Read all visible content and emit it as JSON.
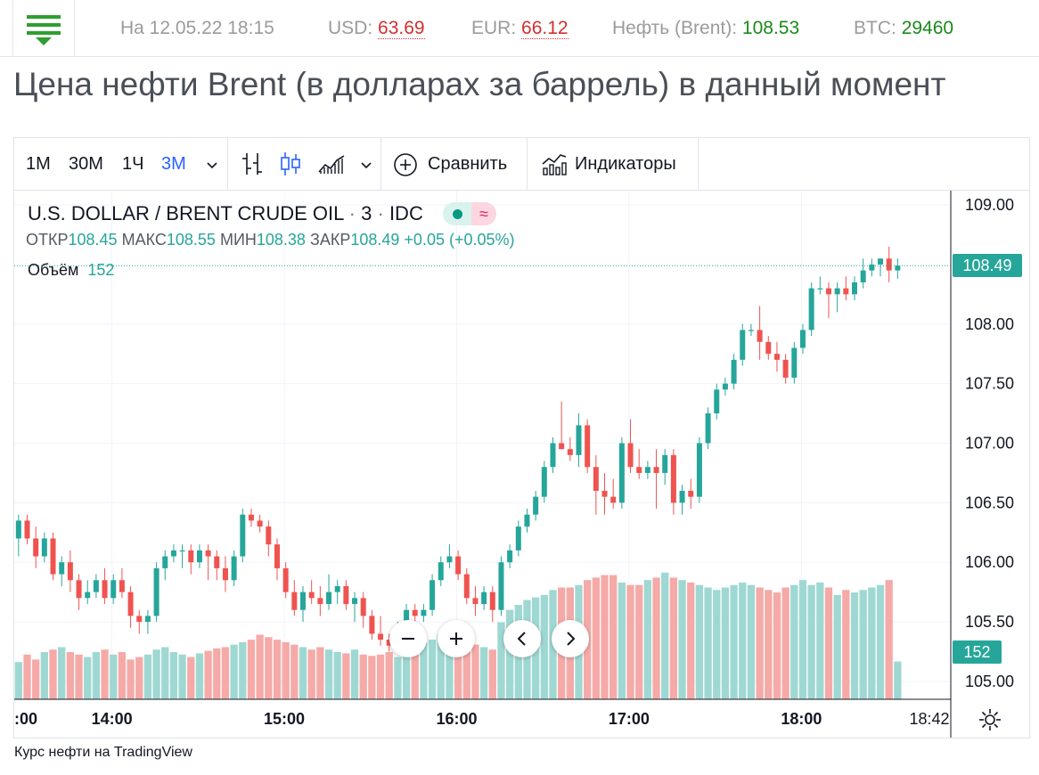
{
  "quotes": {
    "datetime": "На 12.05.22 18:15",
    "usd_label": "USD:",
    "usd_value": "63.69",
    "eur_label": "EUR:",
    "eur_value": "66.12",
    "oil_label": "Нефть (Brent):",
    "oil_value": "108.53",
    "btc_label": "BTC:",
    "btc_value": "29460"
  },
  "page_title": "Цена нефти Brent (в долларах за баррель) в данный момент",
  "toolbar": {
    "timeframes": [
      "1M",
      "30M",
      "1Ч",
      "3М"
    ],
    "active_timeframe": "3М",
    "compare_label": "Сравнить",
    "indicators_label": "Индикаторы"
  },
  "legend": {
    "symbol": "U.S. DOLLAR / BRENT CRUDE OIL",
    "interval": "3",
    "source": "IDC",
    "open_label": "ОТКР",
    "open": "108.45",
    "high_label": "МАКС",
    "high": "108.55",
    "low_label": "МИН",
    "low": "108.38",
    "close_label": "ЗАКР",
    "close": "108.49",
    "change": "+0.05 (+0.05%)",
    "volume_label": "Объём",
    "volume": "152"
  },
  "price_labels": {
    "last_price": "108.49",
    "last_volume": "152"
  },
  "colors": {
    "up": "#26a69a",
    "down": "#ef5350",
    "vol_up": "#9fd8d2",
    "vol_down": "#f5aaa8",
    "accent": "#2962ff"
  },
  "icons": {
    "menu": "hamburger-menu-icon",
    "bars": "bar-chart-icon",
    "candles": "candlestick-icon",
    "area": "area-chart-icon",
    "compare": "plus-circle-icon",
    "indicators": "indicators-icon",
    "settings": "gear-icon"
  },
  "footer_link": "Курс нефти на TradingView",
  "chart_data": {
    "type": "candlestick",
    "y_ticks": [
      "109.00",
      "108.00",
      "107.50",
      "107.00",
      "106.50",
      "106.00",
      "105.50",
      "105.00"
    ],
    "y_tick_values": [
      109.0,
      108.0,
      107.5,
      107.0,
      106.5,
      106.0,
      105.5,
      105.0
    ],
    "ylim": [
      104.85,
      109.12
    ],
    "x_ticks": [
      ":00",
      "14:00",
      "15:00",
      "16:00",
      "17:00",
      "18:00",
      "18:42"
    ],
    "x_start": "13:26",
    "x_end": "18:52",
    "interval_minutes": 3,
    "last_price": 108.49,
    "candles": [
      [
        106.2,
        106.4,
        106.05,
        106.35
      ],
      [
        106.35,
        106.4,
        106.15,
        106.2
      ],
      [
        106.2,
        106.3,
        105.95,
        106.05
      ],
      [
        106.05,
        106.25,
        106.0,
        106.2
      ],
      [
        106.2,
        106.25,
        105.85,
        105.9
      ],
      [
        105.9,
        106.05,
        105.8,
        106.0
      ],
      [
        106.0,
        106.1,
        105.75,
        105.85
      ],
      [
        105.85,
        105.9,
        105.6,
        105.7
      ],
      [
        105.7,
        105.85,
        105.65,
        105.75
      ],
      [
        105.75,
        105.9,
        105.7,
        105.85
      ],
      [
        105.85,
        105.95,
        105.65,
        105.7
      ],
      [
        105.7,
        105.9,
        105.65,
        105.85
      ],
      [
        105.85,
        105.95,
        105.7,
        105.75
      ],
      [
        105.75,
        105.8,
        105.45,
        105.55
      ],
      [
        105.55,
        105.6,
        105.4,
        105.5
      ],
      [
        105.5,
        105.6,
        105.4,
        105.55
      ],
      [
        105.55,
        106.0,
        105.5,
        105.95
      ],
      [
        105.95,
        106.1,
        105.85,
        106.05
      ],
      [
        106.05,
        106.15,
        106.0,
        106.1
      ],
      [
        106.1,
        106.15,
        105.95,
        106.1
      ],
      [
        106.1,
        106.15,
        105.9,
        106.0
      ],
      [
        106.0,
        106.15,
        105.95,
        106.1
      ],
      [
        106.1,
        106.15,
        105.85,
        106.05
      ],
      [
        106.05,
        106.1,
        105.85,
        105.95
      ],
      [
        105.95,
        106.05,
        105.75,
        105.85
      ],
      [
        105.85,
        106.1,
        105.8,
        106.05
      ],
      [
        106.05,
        106.45,
        106.0,
        106.4
      ],
      [
        106.4,
        106.45,
        106.3,
        106.35
      ],
      [
        106.35,
        106.4,
        106.25,
        106.3
      ],
      [
        106.3,
        106.35,
        106.05,
        106.15
      ],
      [
        106.15,
        106.2,
        105.85,
        105.95
      ],
      [
        105.95,
        106.0,
        105.7,
        105.75
      ],
      [
        105.75,
        105.85,
        105.55,
        105.6
      ],
      [
        105.6,
        105.8,
        105.5,
        105.75
      ],
      [
        105.75,
        105.85,
        105.65,
        105.7
      ],
      [
        105.7,
        105.8,
        105.55,
        105.65
      ],
      [
        105.65,
        105.9,
        105.6,
        105.75
      ],
      [
        105.75,
        105.85,
        105.65,
        105.8
      ],
      [
        105.8,
        105.85,
        105.6,
        105.65
      ],
      [
        105.65,
        105.75,
        105.5,
        105.7
      ],
      [
        105.7,
        105.75,
        105.45,
        105.55
      ],
      [
        105.55,
        105.6,
        105.35,
        105.4
      ],
      [
        105.4,
        105.55,
        105.3,
        105.35
      ],
      [
        105.35,
        105.4,
        105.25,
        105.3
      ],
      [
        105.3,
        105.5,
        105.25,
        105.45
      ],
      [
        105.45,
        105.65,
        105.4,
        105.6
      ],
      [
        105.6,
        105.65,
        105.45,
        105.55
      ],
      [
        105.55,
        105.65,
        105.5,
        105.6
      ],
      [
        105.6,
        105.9,
        105.55,
        105.85
      ],
      [
        105.85,
        106.05,
        105.8,
        106.0
      ],
      [
        106.0,
        106.15,
        105.95,
        106.05
      ],
      [
        106.05,
        106.1,
        105.85,
        105.9
      ],
      [
        105.9,
        105.95,
        105.65,
        105.7
      ],
      [
        105.7,
        105.8,
        105.55,
        105.65
      ],
      [
        105.65,
        105.8,
        105.6,
        105.75
      ],
      [
        105.75,
        105.8,
        105.5,
        105.6
      ],
      [
        105.6,
        106.05,
        105.55,
        106.0
      ],
      [
        106.0,
        106.15,
        105.95,
        106.1
      ],
      [
        106.1,
        106.35,
        106.05,
        106.3
      ],
      [
        106.3,
        106.45,
        106.25,
        106.4
      ],
      [
        106.4,
        106.6,
        106.35,
        106.55
      ],
      [
        106.55,
        106.85,
        106.5,
        106.8
      ],
      [
        106.8,
        107.05,
        106.75,
        107.0
      ],
      [
        107.0,
        107.35,
        106.95,
        106.95
      ],
      [
        106.95,
        107.05,
        106.85,
        106.9
      ],
      [
        106.9,
        107.25,
        106.8,
        107.15
      ],
      [
        107.15,
        107.2,
        106.75,
        106.8
      ],
      [
        106.8,
        106.9,
        106.4,
        106.6
      ],
      [
        106.6,
        106.75,
        106.4,
        106.55
      ],
      [
        106.55,
        106.7,
        106.45,
        106.5
      ],
      [
        106.5,
        107.05,
        106.45,
        107.0
      ],
      [
        107.0,
        107.2,
        106.75,
        106.8
      ],
      [
        106.8,
        106.95,
        106.7,
        106.75
      ],
      [
        106.75,
        106.85,
        106.7,
        106.8
      ],
      [
        106.8,
        106.95,
        106.45,
        106.75
      ],
      [
        106.75,
        106.95,
        106.65,
        106.9
      ],
      [
        106.9,
        106.95,
        106.4,
        106.5
      ],
      [
        106.5,
        106.65,
        106.4,
        106.6
      ],
      [
        106.6,
        106.7,
        106.45,
        106.55
      ],
      [
        106.55,
        107.05,
        106.5,
        107.0
      ],
      [
        107.0,
        107.3,
        106.95,
        107.25
      ],
      [
        107.25,
        107.5,
        107.2,
        107.45
      ],
      [
        107.45,
        107.55,
        107.4,
        107.5
      ],
      [
        107.5,
        107.75,
        107.45,
        107.7
      ],
      [
        107.7,
        108.0,
        107.65,
        107.95
      ],
      [
        107.95,
        108.0,
        107.9,
        107.95
      ],
      [
        107.95,
        108.15,
        107.7,
        107.85
      ],
      [
        107.85,
        107.9,
        107.7,
        107.75
      ],
      [
        107.75,
        107.85,
        107.6,
        107.7
      ],
      [
        107.7,
        107.75,
        107.5,
        107.55
      ],
      [
        107.55,
        107.85,
        107.5,
        107.8
      ],
      [
        107.8,
        108.0,
        107.75,
        107.95
      ],
      [
        107.95,
        108.35,
        107.9,
        108.3
      ],
      [
        108.3,
        108.4,
        108.25,
        108.3
      ],
      [
        108.3,
        108.35,
        108.05,
        108.25
      ],
      [
        108.25,
        108.35,
        108.1,
        108.3
      ],
      [
        108.3,
        108.4,
        108.2,
        108.25
      ],
      [
        108.25,
        108.4,
        108.2,
        108.35
      ],
      [
        108.35,
        108.55,
        108.3,
        108.45
      ],
      [
        108.45,
        108.55,
        108.4,
        108.5
      ],
      [
        108.5,
        108.55,
        108.4,
        108.55
      ],
      [
        108.55,
        108.65,
        108.35,
        108.45
      ],
      [
        108.45,
        108.55,
        108.38,
        108.49
      ]
    ],
    "volumes": [
      150,
      180,
      160,
      190,
      200,
      210,
      190,
      180,
      170,
      190,
      200,
      180,
      190,
      160,
      170,
      180,
      200,
      210,
      190,
      180,
      170,
      185,
      195,
      205,
      210,
      220,
      230,
      240,
      260,
      250,
      240,
      230,
      220,
      210,
      200,
      210,
      200,
      190,
      185,
      200,
      180,
      175,
      180,
      190,
      170,
      200,
      210,
      230,
      240,
      260,
      270,
      250,
      230,
      220,
      210,
      200,
      310,
      360,
      380,
      400,
      410,
      420,
      440,
      450,
      450,
      460,
      480,
      490,
      500,
      500,
      470,
      460,
      460,
      480,
      490,
      510,
      490,
      480,
      470,
      460,
      450,
      440,
      450,
      460,
      470,
      460,
      450,
      440,
      430,
      450,
      460,
      480,
      460,
      470,
      450,
      420,
      440,
      430,
      440,
      450,
      460,
      480,
      152
    ],
    "volume_max": 520
  }
}
